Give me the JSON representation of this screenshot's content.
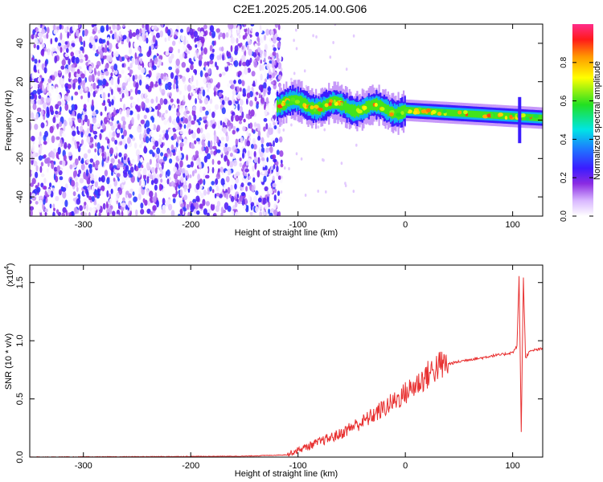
{
  "title": "C2E1.2025.205.14.00.G06",
  "colors": {
    "snr_line": "#e83030",
    "axis": "#000000"
  },
  "chart_data": [
    {
      "type": "heatmap",
      "title": "C2E1.2025.205.14.00.G06",
      "xlabel": "Height of straight line (km)",
      "ylabel": "Frequency (Hz)",
      "xlim": [
        -350,
        128
      ],
      "ylim": [
        -50,
        50
      ],
      "x_ticks": [
        -300,
        -200,
        -100,
        0,
        100
      ],
      "y_ticks": [
        -40,
        -20,
        0,
        20,
        40
      ],
      "colorbar": {
        "label": "Normalized spectral amplitude",
        "range": [
          0,
          1
        ],
        "ticks": [
          "0.0",
          "0.2",
          "0.4",
          "0.6",
          "0.8"
        ],
        "colormap": "white-purple-blue-cyan-green-yellow-orange-red-pink"
      },
      "regions": [
        {
          "name": "noise",
          "x_range": [
            -350,
            -115
          ],
          "freq_range": [
            -50,
            50
          ],
          "amplitude": 0.1
        },
        {
          "name": "signal_track",
          "x_range": [
            -120,
            128
          ],
          "freq_start": 9,
          "freq_end": 1,
          "amplitude_peak": 0.9
        }
      ]
    },
    {
      "type": "line",
      "xlabel": "Height of straight line (km)",
      "ylabel": "SNR (10 * v/v)",
      "y_multiplier": "(x10",
      "y_multiplier_exp": "4",
      "xlim": [
        -350,
        128
      ],
      "ylim": [
        0,
        1.65
      ],
      "x_ticks": [
        -300,
        -200,
        -100,
        0,
        100
      ],
      "y_ticks": [
        "0.0",
        "0.5",
        "1.0",
        "1.5"
      ],
      "series": [
        {
          "x": [
            -350,
            -250,
            -150,
            -110,
            -100,
            -80,
            -60,
            -50,
            -40,
            -30,
            -20,
            -10,
            0,
            10,
            20,
            30,
            40,
            50,
            60,
            70,
            80,
            90,
            100,
            104,
            106,
            108,
            110,
            112,
            115,
            120,
            128
          ],
          "y": [
            0.0,
            0.003,
            0.008,
            0.02,
            0.06,
            0.13,
            0.2,
            0.26,
            0.3,
            0.36,
            0.42,
            0.48,
            0.55,
            0.62,
            0.7,
            0.78,
            0.8,
            0.82,
            0.84,
            0.85,
            0.87,
            0.88,
            0.9,
            0.95,
            1.55,
            0.22,
            1.55,
            0.85,
            0.9,
            0.92,
            0.93
          ]
        }
      ]
    }
  ]
}
